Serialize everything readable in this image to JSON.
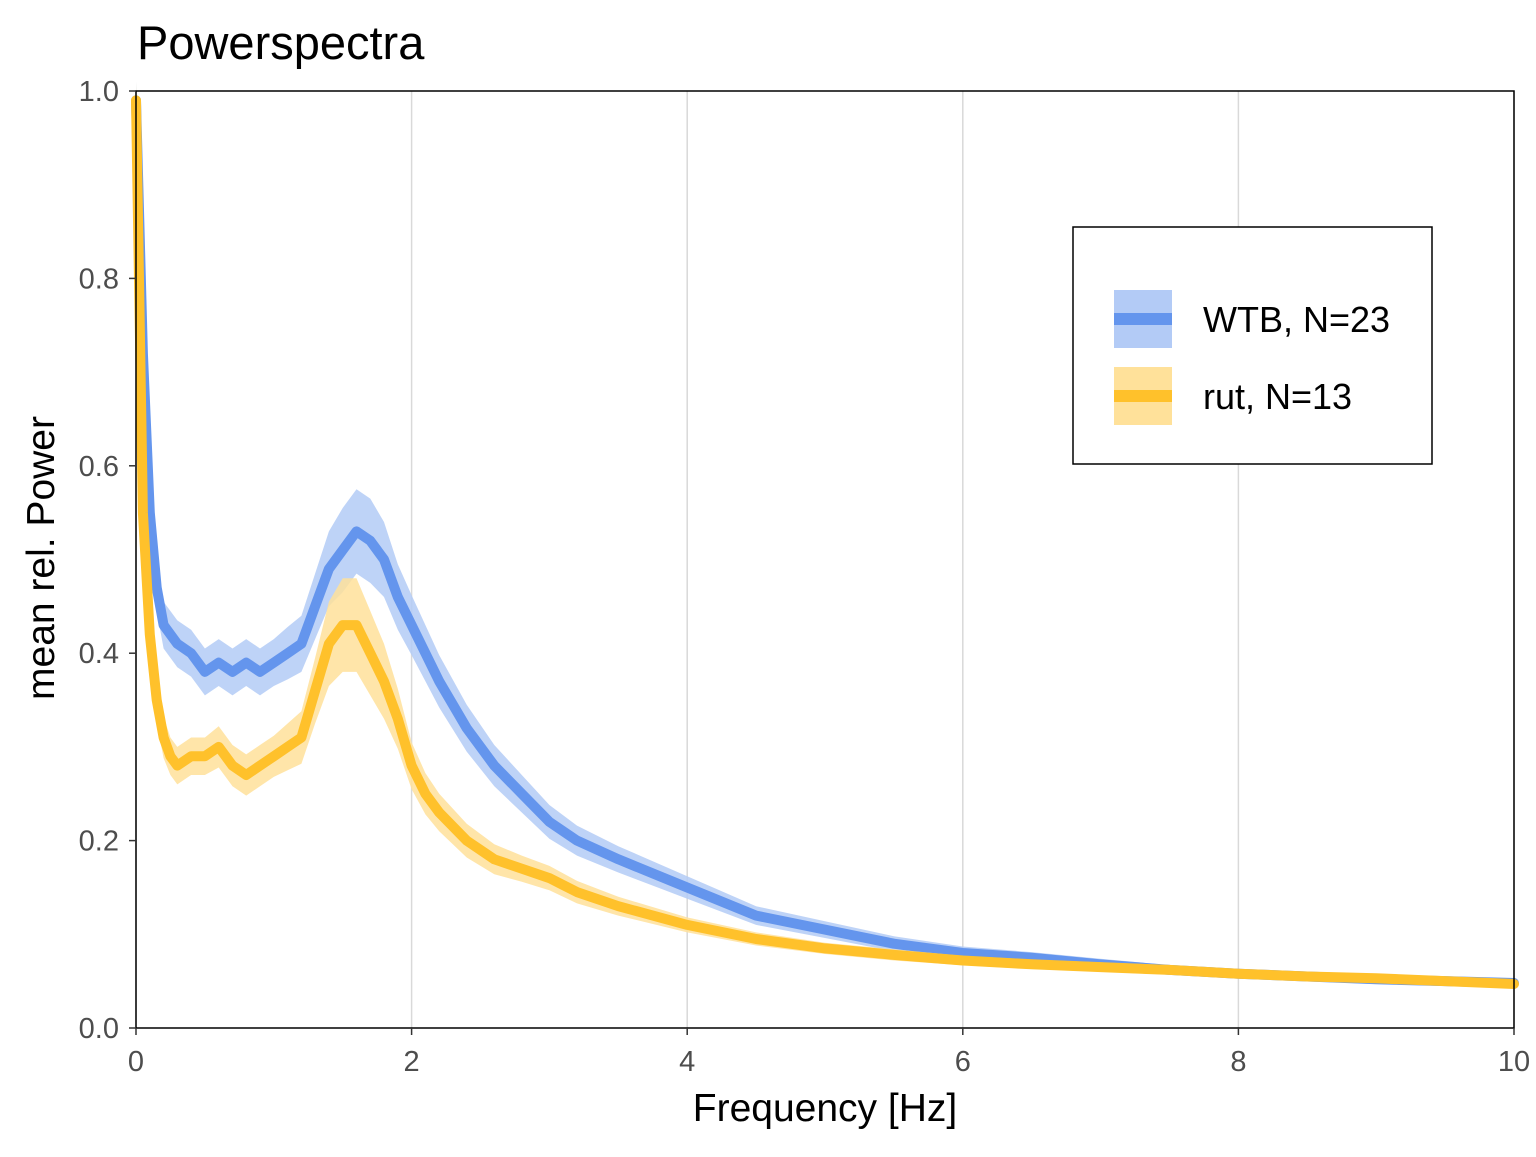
{
  "chart_data": {
    "type": "line",
    "title": "Powerspectra",
    "xlabel": "Frequency [Hz]",
    "ylabel": "mean rel. Power",
    "xlim": [
      0,
      10
    ],
    "ylim": [
      0,
      1.0
    ],
    "x_ticks": [
      "0",
      "2",
      "4",
      "6",
      "8",
      "10"
    ],
    "y_ticks": [
      "0.0",
      "0.2",
      "0.4",
      "0.6",
      "0.8",
      "1.0"
    ],
    "grid": "vertical major gridlines",
    "legend_position": "top-right",
    "series": [
      {
        "name": "WTB, N=23",
        "color": "#6495ed",
        "band_color": "#b3cbf6",
        "x": [
          0,
          0.05,
          0.1,
          0.15,
          0.2,
          0.3,
          0.4,
          0.5,
          0.6,
          0.7,
          0.8,
          0.9,
          1.0,
          1.1,
          1.2,
          1.3,
          1.4,
          1.5,
          1.6,
          1.7,
          1.8,
          1.9,
          2.0,
          2.1,
          2.2,
          2.4,
          2.6,
          2.8,
          3.0,
          3.2,
          3.5,
          4.0,
          4.5,
          5.0,
          5.5,
          6.0,
          6.5,
          7.0,
          7.5,
          8.0,
          8.5,
          9.0,
          9.5,
          10.0
        ],
        "y": [
          0.99,
          0.72,
          0.55,
          0.47,
          0.43,
          0.41,
          0.4,
          0.38,
          0.39,
          0.38,
          0.39,
          0.38,
          0.39,
          0.4,
          0.41,
          0.45,
          0.49,
          0.51,
          0.53,
          0.52,
          0.5,
          0.46,
          0.43,
          0.4,
          0.37,
          0.32,
          0.28,
          0.25,
          0.22,
          0.2,
          0.18,
          0.15,
          0.12,
          0.105,
          0.09,
          0.08,
          0.075,
          0.068,
          0.062,
          0.058,
          0.055,
          0.052,
          0.05,
          0.048
        ],
        "band_halfwidth": [
          0.02,
          0.03,
          0.03,
          0.025,
          0.025,
          0.025,
          0.025,
          0.025,
          0.025,
          0.025,
          0.025,
          0.025,
          0.025,
          0.028,
          0.03,
          0.035,
          0.04,
          0.045,
          0.045,
          0.045,
          0.04,
          0.035,
          0.032,
          0.03,
          0.028,
          0.025,
          0.022,
          0.02,
          0.018,
          0.016,
          0.014,
          0.012,
          0.01,
          0.009,
          0.008,
          0.007,
          0.006,
          0.006,
          0.005,
          0.005,
          0.005,
          0.005,
          0.004,
          0.004
        ]
      },
      {
        "name": "rut, N=13",
        "color": "#ffc12b",
        "band_color": "#ffe19a",
        "x": [
          0,
          0.05,
          0.1,
          0.15,
          0.2,
          0.25,
          0.3,
          0.4,
          0.5,
          0.6,
          0.7,
          0.8,
          0.9,
          1.0,
          1.1,
          1.2,
          1.3,
          1.4,
          1.5,
          1.6,
          1.7,
          1.8,
          1.9,
          2.0,
          2.1,
          2.2,
          2.4,
          2.6,
          2.8,
          3.0,
          3.2,
          3.5,
          4.0,
          4.5,
          5.0,
          5.5,
          6.0,
          6.5,
          7.0,
          7.5,
          8.0,
          8.5,
          9.0,
          9.5,
          10.0
        ],
        "y": [
          0.99,
          0.55,
          0.42,
          0.35,
          0.31,
          0.29,
          0.28,
          0.29,
          0.29,
          0.3,
          0.28,
          0.27,
          0.28,
          0.29,
          0.3,
          0.31,
          0.36,
          0.41,
          0.43,
          0.43,
          0.4,
          0.37,
          0.33,
          0.28,
          0.25,
          0.23,
          0.2,
          0.18,
          0.17,
          0.16,
          0.145,
          0.13,
          0.11,
          0.095,
          0.085,
          0.078,
          0.072,
          0.068,
          0.065,
          0.062,
          0.058,
          0.055,
          0.053,
          0.05,
          0.047
        ],
        "band_halfwidth": [
          0.02,
          0.03,
          0.03,
          0.025,
          0.022,
          0.02,
          0.02,
          0.02,
          0.02,
          0.022,
          0.022,
          0.022,
          0.022,
          0.022,
          0.025,
          0.028,
          0.035,
          0.045,
          0.05,
          0.05,
          0.045,
          0.04,
          0.032,
          0.025,
          0.022,
          0.02,
          0.018,
          0.016,
          0.014,
          0.013,
          0.012,
          0.01,
          0.008,
          0.007,
          0.006,
          0.006,
          0.005,
          0.005,
          0.005,
          0.005,
          0.004,
          0.004,
          0.004,
          0.004,
          0.004
        ]
      }
    ]
  }
}
